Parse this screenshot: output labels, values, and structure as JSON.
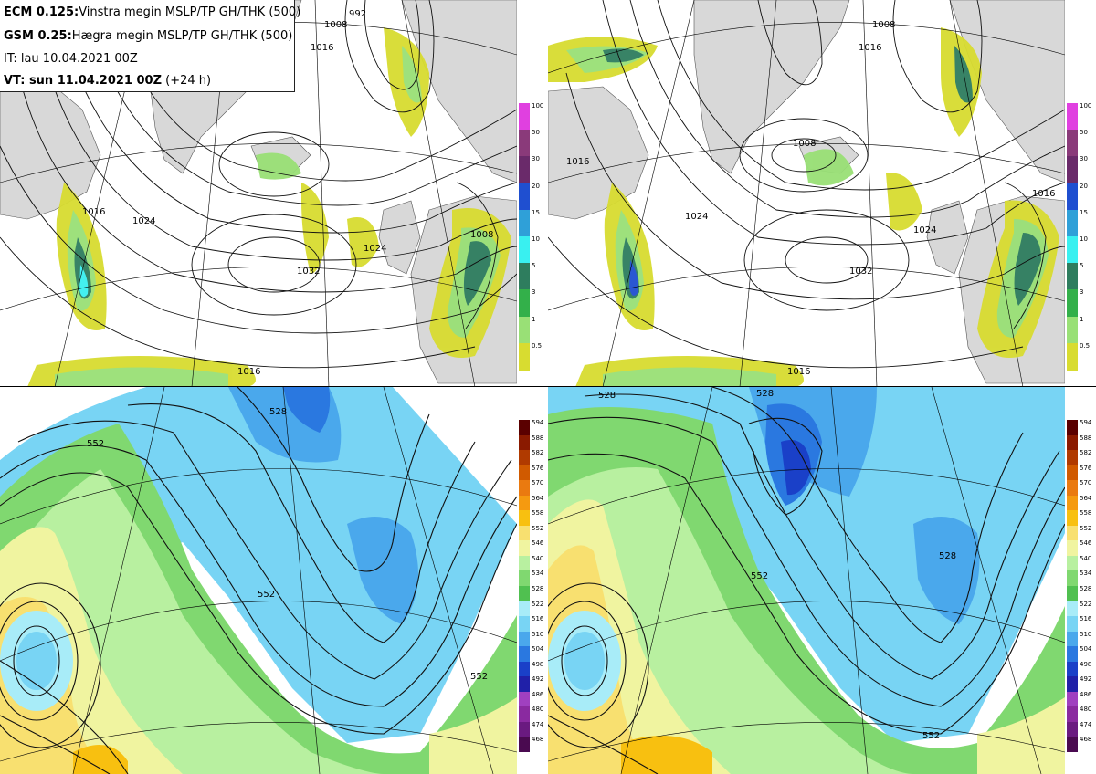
{
  "info": {
    "model1_name": "ECM 0.125:",
    "model1_desc": "Vinstra megin MSLP/TP GH/THK (500)",
    "model2_name": "GSM 0.25:",
    "model2_desc": "Hægra megin MSLP/TP GH/THK (500)",
    "init_time": "IT: lau 10.04.2021 00Z",
    "valid_label": "VT: sun 11.04.2021 00Z",
    "valid_offset": "(+24 h)"
  },
  "precip_legend": {
    "labels": [
      "100",
      "50",
      "30",
      "20",
      "15",
      "10",
      "5",
      "3",
      "1",
      "0.5"
    ],
    "colors": [
      "#e040e0",
      "#8a3a7a",
      "#6a2a6a",
      "#1f4fd0",
      "#2fa0d8",
      "#39f0f0",
      "#2e7d5e",
      "#33b04a",
      "#99e076",
      "#d8dc30"
    ]
  },
  "thk_legend": {
    "labels": [
      "594",
      "588",
      "582",
      "576",
      "570",
      "564",
      "558",
      "552",
      "546",
      "540",
      "534",
      "528",
      "522",
      "516",
      "510",
      "504",
      "498",
      "492",
      "486",
      "480",
      "474",
      "468"
    ],
    "colors": [
      "#5a0000",
      "#8a1a00",
      "#b03a00",
      "#d05a00",
      "#ea7a10",
      "#f59a10",
      "#f8c010",
      "#f8e070",
      "#f0f4a0",
      "#b8f0a0",
      "#80d870",
      "#50c050",
      "#a8ecf8",
      "#78d4f4",
      "#4aa8ec",
      "#2a78e0",
      "#1a40c8",
      "#2020a8",
      "#a040c0",
      "#8a2aa0",
      "#6a1a80",
      "#4a0a50"
    ]
  },
  "map_tl": {
    "isobar_labels": [
      "1016",
      "1008",
      "992",
      "1024",
      "1032",
      "1024",
      "1016",
      "1008",
      "1016"
    ]
  },
  "map_tr": {
    "isobar_labels": [
      "1016",
      "1008",
      "1016",
      "1024",
      "1032",
      "1008",
      "1024",
      "1016",
      "1016"
    ]
  },
  "map_bl": {
    "thk_labels": [
      "552",
      "528",
      "552",
      "552"
    ]
  },
  "map_br": {
    "thk_labels": [
      "528",
      "528",
      "552",
      "528",
      "552"
    ]
  }
}
